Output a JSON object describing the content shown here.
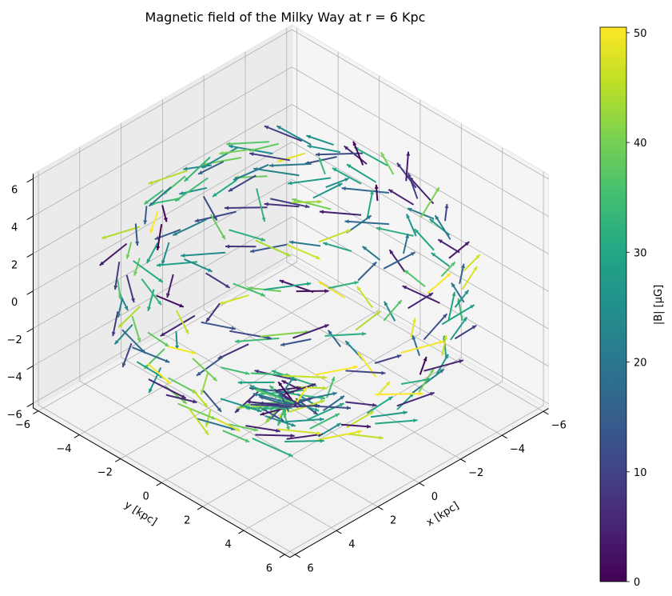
{
  "chart_data": {
    "type": "3d-quiver",
    "title": "Magnetic field of the Milky Way at $r = 6$ Kpc",
    "title_display": "Magnetic field of the Milky Way at r = 6 Kpc",
    "xlabel": "x [kpc]",
    "ylabel": "y [kpc]",
    "zlabel": "",
    "xlim": [
      -6,
      6
    ],
    "ylim": [
      -6,
      6
    ],
    "zlim": [
      -6,
      6
    ],
    "x_ticks": [
      "−6",
      "−4",
      "−2",
      "0",
      "2",
      "4",
      "6"
    ],
    "y_ticks": [
      "−6",
      "−4",
      "−2",
      "0",
      "2",
      "4",
      "6"
    ],
    "z_ticks": [
      "−6",
      "−4",
      "−2",
      "0",
      "2",
      "4",
      "6"
    ],
    "colorbar": {
      "label": "|B| [μG]",
      "colormap": "viridis",
      "range": [
        0,
        50.5
      ],
      "ticks": [
        "0",
        "10",
        "20",
        "30",
        "40",
        "50"
      ]
    },
    "sphere_radius_kpc": 6,
    "grid": true,
    "colors": {
      "viridis_low": "#440154",
      "viridis_mid": "#21918c",
      "viridis_high": "#fde725"
    }
  }
}
